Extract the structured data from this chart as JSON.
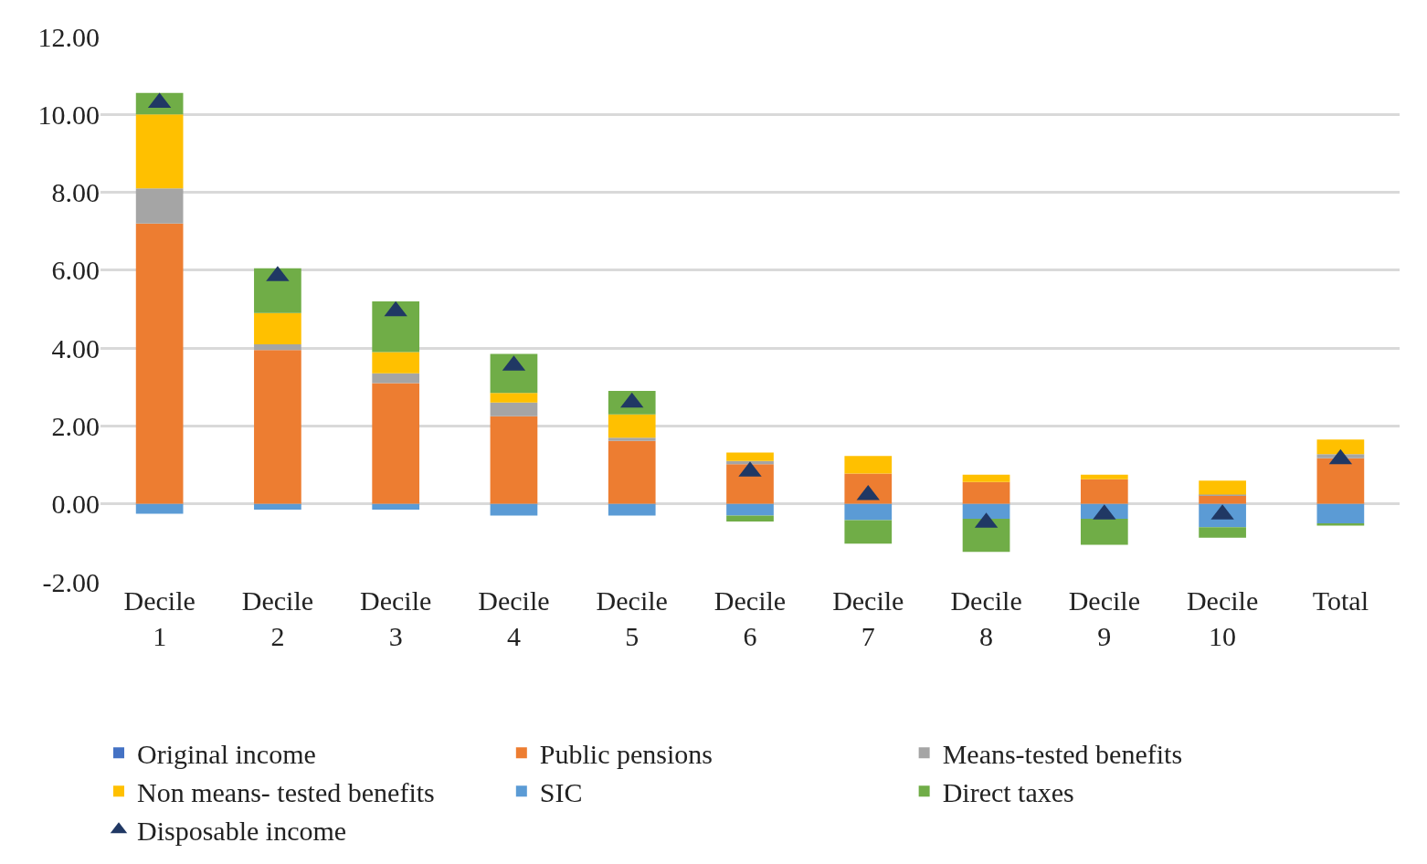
{
  "chart_data": {
    "type": "bar",
    "stacked": true,
    "categories": [
      "Decile 1",
      "Decile 2",
      "Decile 3",
      "Decile 4",
      "Decile 5",
      "Decile 6",
      "Decile 7",
      "Decile 8",
      "Decile 9",
      "Decile 10",
      "Total"
    ],
    "series": [
      {
        "name": "Original income",
        "color": "#4472c4",
        "values": [
          0,
          0,
          0,
          0,
          0,
          0,
          0,
          0,
          0,
          0,
          0
        ]
      },
      {
        "name": "Public pensions",
        "color": "#ed7d31",
        "values": [
          7.2,
          3.95,
          3.1,
          2.25,
          1.62,
          1.02,
          0.78,
          0.56,
          0.63,
          0.22,
          1.17
        ]
      },
      {
        "name": "Means-tested benefits",
        "color": "#a5a5a5",
        "values": [
          0.9,
          0.15,
          0.25,
          0.35,
          0.08,
          0.08,
          0,
          0,
          0,
          0.02,
          0.11
        ]
      },
      {
        "name": "Non means- tested benefits",
        "color": "#ffc000",
        "values": [
          1.9,
          0.8,
          0.55,
          0.25,
          0.6,
          0.22,
          0.45,
          0.19,
          0.12,
          0.36,
          0.37
        ]
      },
      {
        "name": "SIC",
        "color": "#5b9bd5",
        "values": [
          -0.25,
          -0.15,
          -0.15,
          -0.3,
          -0.3,
          -0.3,
          -0.42,
          -0.38,
          -0.38,
          -0.6,
          -0.5
        ]
      },
      {
        "name": "Direct taxes",
        "color": "#70ad47",
        "values": [
          0.55,
          1.15,
          1.3,
          1.0,
          0.6,
          -0.15,
          -0.6,
          -0.85,
          -0.67,
          -0.27,
          -0.06
        ]
      },
      {
        "name": "Disposable income",
        "type": "scatter",
        "marker": "triangle",
        "color": "#203864",
        "values": [
          10.3,
          5.85,
          4.95,
          3.55,
          2.6,
          0.83,
          0.23,
          -0.48,
          -0.27,
          -0.27,
          1.15
        ]
      }
    ],
    "ylim": [
      -2,
      12
    ],
    "yticks": [
      {
        "value": -2,
        "label": "-2.00"
      },
      {
        "value": 0,
        "label": "0.00"
      },
      {
        "value": 2,
        "label": "2.00"
      },
      {
        "value": 4,
        "label": "4.00"
      },
      {
        "value": 6,
        "label": "6.00"
      },
      {
        "value": 8,
        "label": "8.00"
      },
      {
        "value": 10,
        "label": "10.00"
      },
      {
        "value": 12,
        "label": "12.00"
      }
    ],
    "grid": "y",
    "legend": "bottom"
  }
}
